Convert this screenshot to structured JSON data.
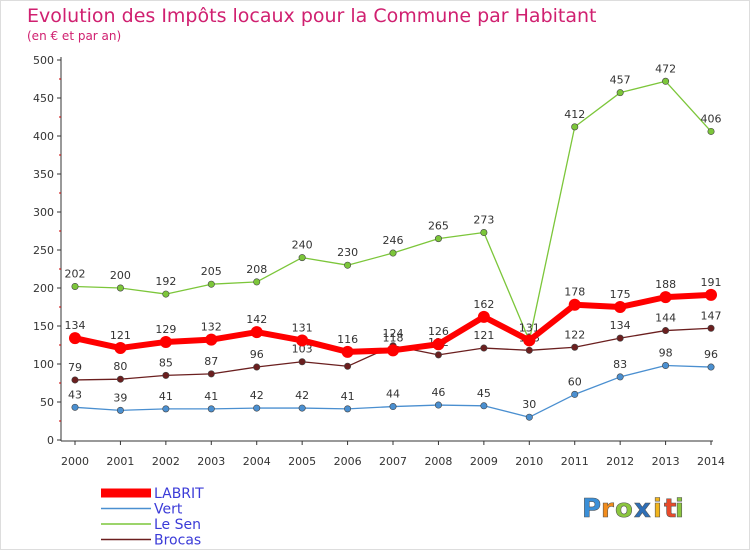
{
  "chart_data": {
    "type": "line",
    "title": "Evolution des Impôts locaux pour la Commune par Habitant",
    "subtitle": "(en € et par an)",
    "xlabel": "",
    "ylabel": "",
    "ylim": [
      0,
      500
    ],
    "yticks": [
      0,
      50,
      100,
      150,
      200,
      250,
      300,
      350,
      400,
      450,
      500
    ],
    "grid": false,
    "legend_position": "bottom-left",
    "categories": [
      "2000",
      "2001",
      "2002",
      "2003",
      "2004",
      "2005",
      "2006",
      "2007",
      "2008",
      "2009",
      "2010",
      "2011",
      "2012",
      "2013",
      "2014"
    ],
    "series": [
      {
        "name": "Brocas",
        "color": "#6b1f1f",
        "values": [
          79,
          80,
          85,
          87,
          96,
          103,
          97,
          124,
          112,
          121,
          118,
          122,
          134,
          144,
          147
        ],
        "labels": [
          "79",
          "80",
          "85",
          "87",
          "96",
          "103",
          "",
          "124",
          "112",
          "121",
          "118",
          "122",
          "134",
          "144",
          "147"
        ]
      },
      {
        "name": "Vert",
        "color": "#4a8fd0",
        "values": [
          43,
          39,
          41,
          41,
          42,
          42,
          41,
          44,
          46,
          45,
          30,
          60,
          83,
          98,
          96
        ],
        "labels": [
          "43",
          "39",
          "41",
          "41",
          "42",
          "42",
          "41",
          "44",
          "46",
          "45",
          "30",
          "60",
          "83",
          "98",
          "96"
        ]
      },
      {
        "name": "Le Sen",
        "color": "#7cc63a",
        "values": [
          202,
          200,
          192,
          205,
          208,
          240,
          230,
          246,
          265,
          273,
          131,
          412,
          457,
          472,
          406
        ],
        "labels": [
          "202",
          "200",
          "192",
          "205",
          "208",
          "240",
          "230",
          "246",
          "265",
          "273",
          "131",
          "412",
          "457",
          "472",
          "406"
        ]
      },
      {
        "name": "LABRIT",
        "color": "#ff0000",
        "values": [
          134,
          121,
          129,
          132,
          142,
          131,
          116,
          118,
          126,
          162,
          131,
          178,
          175,
          188,
          191
        ],
        "labels": [
          "134",
          "121",
          "129",
          "132",
          "142",
          "131",
          "116",
          "118",
          "126",
          "162",
          "",
          "178",
          "175",
          "188",
          "191"
        ]
      }
    ],
    "legend_order": [
      "LABRIT",
      "Vert",
      "Le Sen",
      "Brocas"
    ]
  },
  "brand": {
    "letters": [
      "P",
      "r",
      "o",
      "x",
      "i",
      "t",
      "i"
    ],
    "colors": [
      "#3a8fd8",
      "#f28c1c",
      "#8cc63f",
      "#2e6fb7",
      "#f2b51c",
      "#e84a2a",
      "#8cc63f"
    ]
  }
}
